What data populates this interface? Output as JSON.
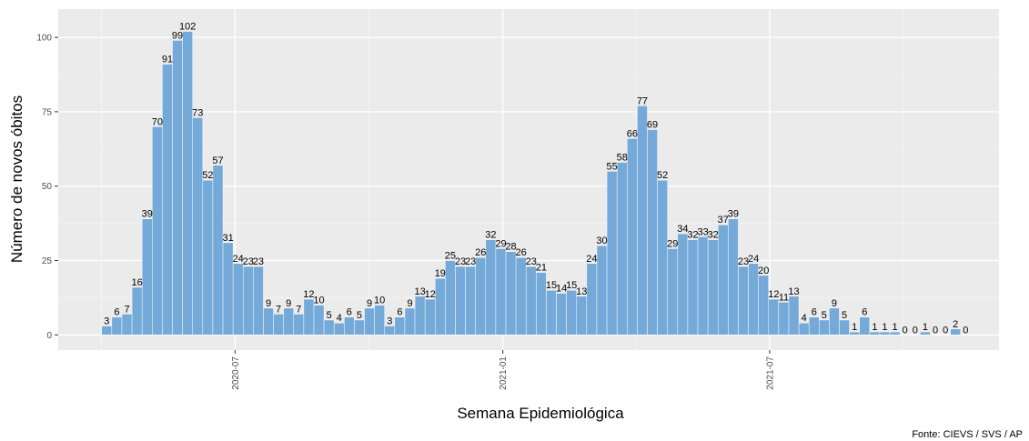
{
  "chart_data": {
    "type": "bar",
    "x_label": "Semana Epidemiológica",
    "y_label": "Número de novos óbitos",
    "caption": "Fonte: CIEVS / SVS / AP",
    "categories": [
      null,
      null,
      null,
      null,
      null,
      null,
      null,
      null,
      null,
      null,
      null,
      null,
      null,
      null,
      null,
      null,
      null,
      null,
      null,
      null,
      null,
      null,
      null,
      null,
      null,
      null,
      null,
      null,
      null,
      null,
      null,
      null,
      null,
      null,
      null,
      null,
      null,
      null,
      null,
      null,
      null,
      null,
      null,
      null,
      null,
      null,
      null,
      null,
      null,
      null,
      null,
      null,
      null,
      null,
      null,
      null,
      null,
      null,
      null,
      null,
      null,
      null,
      null,
      null,
      null,
      null,
      null,
      null,
      null,
      null,
      null,
      null,
      null,
      null,
      null,
      null,
      null,
      null,
      null,
      null,
      null,
      null,
      null,
      null,
      null,
      null
    ],
    "values": [
      3,
      6,
      7,
      16,
      39,
      70,
      91,
      99,
      102,
      73,
      52,
      57,
      31,
      24,
      23,
      23,
      9,
      7,
      9,
      7,
      12,
      10,
      5,
      4,
      6,
      5,
      9,
      10,
      3,
      6,
      9,
      13,
      12,
      19,
      25,
      23,
      23,
      26,
      32,
      29,
      28,
      26,
      23,
      21,
      15,
      14,
      15,
      13,
      24,
      30,
      55,
      58,
      66,
      77,
      69,
      52,
      29,
      34,
      32,
      33,
      32,
      37,
      39,
      23,
      24,
      20,
      12,
      11,
      13,
      4,
      6,
      5,
      9,
      5,
      1,
      6,
      1,
      1,
      1,
      0,
      0,
      1,
      0,
      0,
      2,
      0
    ],
    "color": "#74a9d8",
    "xlim": [
      -4.8,
      88.3
    ],
    "xticks": [
      {
        "value": 12.7,
        "label": "2020-07"
      },
      {
        "value": 39.2,
        "label": "2021-01"
      },
      {
        "value": 65.6,
        "label": "2021-07"
      }
    ],
    "ylim": [
      -5.1,
      109.5
    ],
    "yticks": [
      0,
      25,
      50,
      75,
      100
    ],
    "grid": true
  }
}
